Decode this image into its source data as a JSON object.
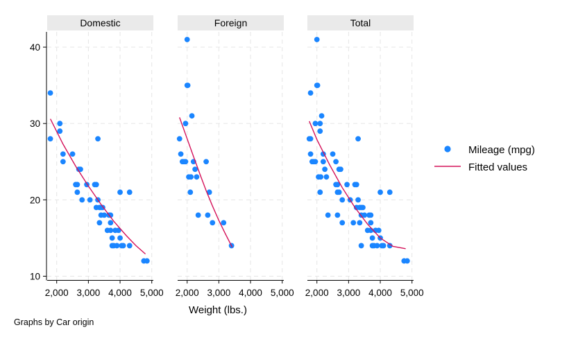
{
  "chart_data": {
    "type": "scatter",
    "xlabel": "Weight (lbs.)",
    "ylabel": "",
    "note": "Graphs by Car origin",
    "xlim": [
      1700,
      5050
    ],
    "ylim": [
      9.5,
      42
    ],
    "xticks": [
      2000,
      3000,
      4000,
      5000
    ],
    "xtick_labels": [
      "2,000",
      "3,000",
      "4,000",
      "5,000"
    ],
    "yticks": [
      10,
      20,
      30,
      40
    ],
    "ytick_labels": [
      "10",
      "20",
      "30",
      "40"
    ],
    "grid": true,
    "legend": {
      "position": "right",
      "entries": [
        "Mileage (mpg)",
        "Fitted values"
      ]
    },
    "colors": {
      "points": "#1a85ff",
      "fit": "#d41159",
      "strip": "#eaeaea",
      "grid": "#e5e5e5"
    },
    "panels": [
      {
        "title": "Domestic",
        "points": [
          [
            1800,
            34
          ],
          [
            1800,
            28
          ],
          [
            2100,
            30
          ],
          [
            2100,
            29
          ],
          [
            2200,
            26
          ],
          [
            2200,
            25
          ],
          [
            2500,
            26
          ],
          [
            2600,
            22
          ],
          [
            2650,
            22
          ],
          [
            2650,
            21
          ],
          [
            2700,
            24
          ],
          [
            2750,
            24
          ],
          [
            2800,
            20
          ],
          [
            2950,
            22
          ],
          [
            3050,
            20
          ],
          [
            3200,
            22
          ],
          [
            3250,
            22
          ],
          [
            3250,
            19
          ],
          [
            3300,
            28
          ],
          [
            3300,
            20
          ],
          [
            3350,
            19
          ],
          [
            3350,
            17
          ],
          [
            3400,
            19
          ],
          [
            3400,
            18
          ],
          [
            3450,
            19
          ],
          [
            3500,
            18
          ],
          [
            3600,
            16
          ],
          [
            3650,
            18
          ],
          [
            3700,
            18
          ],
          [
            3700,
            16
          ],
          [
            3700,
            17
          ],
          [
            3750,
            15
          ],
          [
            3750,
            14
          ],
          [
            3800,
            14
          ],
          [
            3850,
            16
          ],
          [
            3900,
            14
          ],
          [
            3950,
            16
          ],
          [
            4000,
            21
          ],
          [
            4000,
            15
          ],
          [
            4050,
            14
          ],
          [
            4100,
            14
          ],
          [
            4300,
            21
          ],
          [
            4300,
            14
          ],
          [
            4750,
            12
          ],
          [
            4850,
            12
          ]
        ],
        "fit": [
          [
            1800,
            30.6
          ],
          [
            2200,
            27.3
          ],
          [
            2600,
            24.4
          ],
          [
            3000,
            21.8
          ],
          [
            3400,
            19.4
          ],
          [
            3800,
            17.2
          ],
          [
            4200,
            15.3
          ],
          [
            4500,
            14.0
          ],
          [
            4800,
            12.9
          ]
        ]
      },
      {
        "title": "Foreign",
        "points": [
          [
            1760,
            28
          ],
          [
            1800,
            26
          ],
          [
            1850,
            25
          ],
          [
            1900,
            25
          ],
          [
            1950,
            30
          ],
          [
            1950,
            25
          ],
          [
            2000,
            41
          ],
          [
            2000,
            35
          ],
          [
            2020,
            35
          ],
          [
            2050,
            23
          ],
          [
            2100,
            21
          ],
          [
            2120,
            23
          ],
          [
            2150,
            31
          ],
          [
            2200,
            25
          ],
          [
            2250,
            24
          ],
          [
            2300,
            23
          ],
          [
            2350,
            18
          ],
          [
            2600,
            25
          ],
          [
            2650,
            18
          ],
          [
            2700,
            21
          ],
          [
            2800,
            17
          ],
          [
            3150,
            17
          ],
          [
            3400,
            14
          ]
        ],
        "fit": [
          [
            1760,
            30.8
          ],
          [
            2000,
            28.0
          ],
          [
            2200,
            25.7
          ],
          [
            2400,
            23.4
          ],
          [
            2600,
            21.2
          ],
          [
            2800,
            19.2
          ],
          [
            3000,
            17.3
          ],
          [
            3200,
            15.6
          ],
          [
            3420,
            13.8
          ]
        ]
      },
      {
        "title": "Total",
        "points": [
          [
            1760,
            28
          ],
          [
            1800,
            34
          ],
          [
            1800,
            28
          ],
          [
            1800,
            26
          ],
          [
            1850,
            25
          ],
          [
            1900,
            25
          ],
          [
            1950,
            30
          ],
          [
            1950,
            25
          ],
          [
            2000,
            41
          ],
          [
            2000,
            35
          ],
          [
            2020,
            35
          ],
          [
            2050,
            23
          ],
          [
            2100,
            21
          ],
          [
            2100,
            30
          ],
          [
            2100,
            29
          ],
          [
            2120,
            23
          ],
          [
            2150,
            31
          ],
          [
            2200,
            26
          ],
          [
            2200,
            25
          ],
          [
            2250,
            24
          ],
          [
            2300,
            23
          ],
          [
            2350,
            18
          ],
          [
            2500,
            26
          ],
          [
            2600,
            25
          ],
          [
            2600,
            22
          ],
          [
            2650,
            22
          ],
          [
            2650,
            21
          ],
          [
            2650,
            18
          ],
          [
            2700,
            24
          ],
          [
            2750,
            24
          ],
          [
            2700,
            21
          ],
          [
            2800,
            20
          ],
          [
            2800,
            17
          ],
          [
            2950,
            22
          ],
          [
            3050,
            20
          ],
          [
            3150,
            17
          ],
          [
            3200,
            22
          ],
          [
            3250,
            22
          ],
          [
            3250,
            19
          ],
          [
            3300,
            28
          ],
          [
            3300,
            20
          ],
          [
            3350,
            19
          ],
          [
            3350,
            17
          ],
          [
            3400,
            19
          ],
          [
            3400,
            18
          ],
          [
            3400,
            14
          ],
          [
            3450,
            19
          ],
          [
            3500,
            18
          ],
          [
            3600,
            16
          ],
          [
            3650,
            18
          ],
          [
            3700,
            18
          ],
          [
            3700,
            16
          ],
          [
            3700,
            17
          ],
          [
            3750,
            15
          ],
          [
            3750,
            14
          ],
          [
            3800,
            14
          ],
          [
            3850,
            16
          ],
          [
            3900,
            14
          ],
          [
            3950,
            16
          ],
          [
            4000,
            21
          ],
          [
            4000,
            15
          ],
          [
            4050,
            14
          ],
          [
            4100,
            14
          ],
          [
            4300,
            21
          ],
          [
            4300,
            14
          ],
          [
            4750,
            12
          ],
          [
            4850,
            12
          ]
        ],
        "fit": [
          [
            1760,
            30.3
          ],
          [
            2000,
            27.9
          ],
          [
            2400,
            24.6
          ],
          [
            2800,
            21.6
          ],
          [
            3200,
            19.0
          ],
          [
            3600,
            16.8
          ],
          [
            4000,
            15.0
          ],
          [
            4400,
            13.9
          ],
          [
            4800,
            13.6
          ]
        ]
      }
    ]
  }
}
